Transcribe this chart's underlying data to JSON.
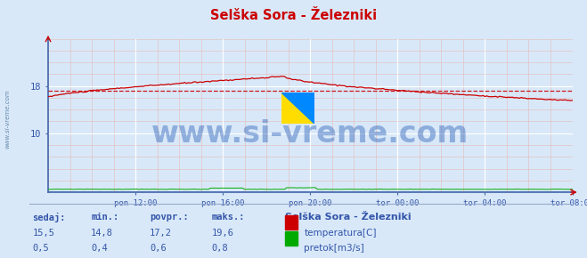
{
  "title": "Selška Sora - Železniki",
  "bg_color": "#d8e8f8",
  "border_color": "#4466aa",
  "temp_color": "#cc0000",
  "flow_color": "#00aa00",
  "blue_line_color": "#3355aa",
  "avg_temp": 17.2,
  "avg_flow": 0.6,
  "watermark": "www.si-vreme.com",
  "watermark_color": "#3366bb",
  "watermark_alpha": 0.45,
  "watermark_fontsize": 24,
  "xlabel_color": "#3355aa",
  "xtick_labels": [
    "pon 12:00",
    "pon 16:00",
    "pon 20:00",
    "tor 00:00",
    "tor 04:00",
    "tor 08:00"
  ],
  "xtick_positions": [
    48,
    96,
    144,
    192,
    240,
    288
  ],
  "ytick_labels": [
    "10",
    "18"
  ],
  "ytick_positions": [
    10,
    18
  ],
  "ylim": [
    0,
    26
  ],
  "xlim": [
    0,
    288
  ],
  "grid_minor_color": "#e8b8b8",
  "grid_major_color": "#ffffff",
  "footer_text": "Selška Sora - Železniki",
  "sedaj_temp": 15.5,
  "min_temp": 14.8,
  "povpr_temp": 17.2,
  "maks_temp": 19.6,
  "sedaj_flow": 0.5,
  "min_flow": 0.4,
  "povpr_flow": 0.6,
  "maks_flow": 0.8,
  "footer_label_color": "#3355aa",
  "temp_legend_color": "#cc0000",
  "flow_legend_color": "#00aa00"
}
